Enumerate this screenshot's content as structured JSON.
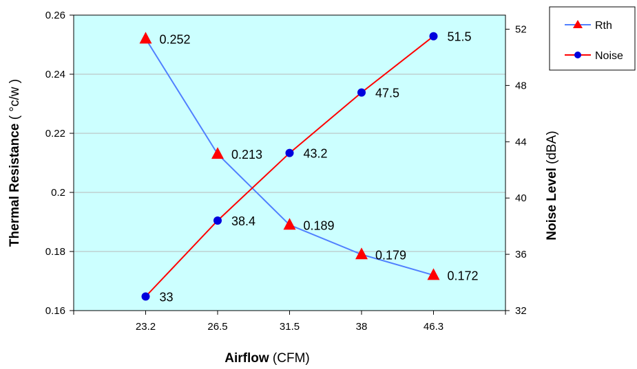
{
  "chart_data": {
    "type": "line",
    "x": {
      "categories": [
        "23.2",
        "26.5",
        "31.5",
        "38",
        "46.3"
      ],
      "label_bold": "Airflow",
      "label_unit": "(CFM)"
    },
    "y_left": {
      "label_bold": "Thermal Resistance",
      "label_unit": "( °c/w )",
      "ylim": [
        0.16,
        0.26
      ],
      "ticks": [
        "0.16",
        "0.18",
        "0.2",
        "0.22",
        "0.24",
        "0.26"
      ],
      "tick_values": [
        0.16,
        0.18,
        0.2,
        0.22,
        0.24,
        0.26
      ]
    },
    "y_right": {
      "label_bold": "Noise Level",
      "label_unit": "(dBA)",
      "ylim": [
        32,
        53
      ],
      "ticks": [
        "32",
        "36",
        "40",
        "44",
        "48",
        "52"
      ],
      "tick_values": [
        32,
        36,
        40,
        44,
        48,
        52
      ]
    },
    "series": [
      {
        "name": "Rth",
        "axis": "left",
        "values": [
          0.252,
          0.213,
          0.189,
          0.179,
          0.172
        ],
        "labels": [
          "0.252",
          "0.213",
          "0.189",
          "0.179",
          "0.172"
        ],
        "line_color": "#4f7fff",
        "marker": "triangle",
        "marker_color": "#ff0000"
      },
      {
        "name": "Noise",
        "axis": "right",
        "values": [
          33,
          38.4,
          43.2,
          47.5,
          51.5
        ],
        "labels": [
          "33",
          "38.4",
          "43.2",
          "47.5",
          "51.5"
        ],
        "line_color": "#ff0000",
        "marker": "circle",
        "marker_color": "#0000dd"
      }
    ],
    "plot_background": "#ccffff",
    "grid": true,
    "legend_position": "top-right"
  }
}
